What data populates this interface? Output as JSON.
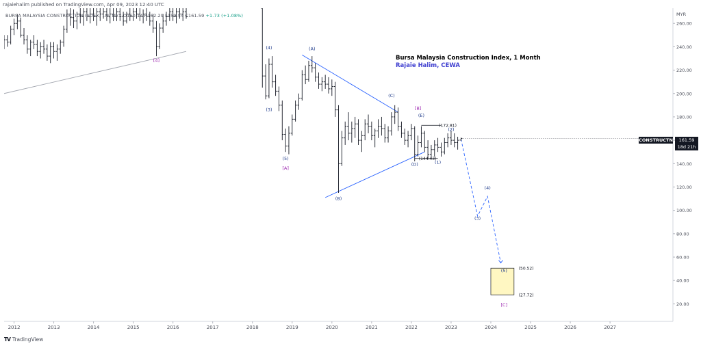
{
  "header": {
    "published": "rajaiehalim published on TradingView.com, Apr 09, 2023 12:40 UTC",
    "symbol_line": "BURSA MALAYSIA CONSTRUCTION INDEX, 1M, MYX  O160.14  H162.29  L159.54  C161.59",
    "change": "+1.73 (+1.08%)"
  },
  "annotation": {
    "title": "Bursa Malaysia Construction Index, 1 Month",
    "author": "Rajaie Halim, CEWA"
  },
  "price_tag": {
    "symbol": "CONSTRUCTN",
    "price": "161.59",
    "countdown": "18d 21h"
  },
  "footer": {
    "brand": "TradingView",
    "logo": "TV"
  },
  "colors": {
    "bar": "#131722",
    "trend": "#2962ff",
    "label_blue": "#1e3a8a",
    "label_purple": "#9c27b0",
    "target_box": "#fff7c2",
    "grid": "#e0e3eb"
  },
  "chart_data": {
    "type": "bar",
    "title": "Bursa Malaysia Construction Index, 1 Month",
    "x_axis": {
      "type": "date",
      "range": [
        "2011-10",
        "2028-08"
      ],
      "tick_labels": [
        "2012",
        "2013",
        "2014",
        "2015",
        "2016",
        "2017",
        "2018",
        "2019",
        "2020",
        "2021",
        "2022",
        "2023",
        "2024",
        "2025",
        "2026",
        "2027"
      ]
    },
    "y_axis": {
      "unit": "MYR",
      "range": [
        5,
        273
      ],
      "tick_labels": [
        "20.00",
        "40.00",
        "60.00",
        "80.00",
        "100.00",
        "120.00",
        "140.00",
        "160.00",
        "180.00",
        "200.00",
        "220.00",
        "240.00",
        "260.00"
      ]
    },
    "last_bar": {
      "date": "2023-04",
      "open": 160.14,
      "high": 162.29,
      "low": 159.54,
      "close": 161.59
    },
    "wave_labels": [
      {
        "text": "[4]",
        "date": "2015-08",
        "price": 227,
        "color": "purple"
      },
      {
        "text": "(4)",
        "date": "2018-06",
        "price": 238,
        "color": "blue"
      },
      {
        "text": "(3)",
        "date": "2018-06",
        "price": 185,
        "color": "blue"
      },
      {
        "text": "(5)",
        "date": "2018-11",
        "price": 143,
        "color": "blue"
      },
      {
        "text": "[A]",
        "date": "2018-11",
        "price": 135,
        "color": "purple"
      },
      {
        "text": "(A)",
        "date": "2019-07",
        "price": 237,
        "color": "blue"
      },
      {
        "text": "(B)",
        "date": "2020-03",
        "price": 109,
        "color": "blue"
      },
      {
        "text": "(C)",
        "date": "2021-07",
        "price": 197,
        "color": "blue"
      },
      {
        "text": "[B]",
        "date": "2022-03",
        "price": 186,
        "color": "purple"
      },
      {
        "text": "(E)",
        "date": "2022-04",
        "price": 180,
        "color": "blue"
      },
      {
        "text": "(D)",
        "date": "2022-02",
        "price": 138,
        "color": "blue"
      },
      {
        "text": "(2)",
        "date": "2023-01",
        "price": 168,
        "color": "blue"
      },
      {
        "text": "(1)",
        "date": "2022-09",
        "price": 140,
        "color": "blue"
      },
      {
        "text": "(4)",
        "date": "2023-12",
        "price": 118,
        "color": "blue"
      },
      {
        "text": "(3)",
        "date": "2023-09",
        "price": 92,
        "color": "blue"
      },
      {
        "text": "(5)",
        "date": "2024-05",
        "price": 47,
        "color": "blue"
      },
      {
        "text": "[C]",
        "date": "2024-05",
        "price": 18,
        "color": "purple"
      }
    ],
    "level_labels": [
      {
        "text": "(172.81)",
        "price": 172.81
      },
      {
        "text": "(144.43)",
        "price": 144.43
      },
      {
        "text": "(50.52)",
        "price": 50.52
      },
      {
        "text": "(27.72)",
        "price": 27.72
      }
    ],
    "projection_path": [
      {
        "date": "2023-04",
        "price": 161
      },
      {
        "date": "2023-09",
        "price": 95
      },
      {
        "date": "2023-12",
        "price": 112
      },
      {
        "date": "2024-04",
        "price": 55
      }
    ],
    "target_zone": {
      "from_date": "2024-01",
      "to_date": "2024-08",
      "top": 50.52,
      "bottom": 27.72
    },
    "trendlines": [
      {
        "from": {
          "date": "2011-10",
          "price": 200
        },
        "to": {
          "date": "2016-05",
          "price": 236
        },
        "color": "grey"
      },
      {
        "from": {
          "date": "2019-04",
          "price": 233
        },
        "to": {
          "date": "2021-09",
          "price": 184
        },
        "color": "blue"
      },
      {
        "from": {
          "date": "2019-11",
          "price": 111
        },
        "to": {
          "date": "2022-05",
          "price": 150
        },
        "color": "blue"
      }
    ],
    "series": [
      {
        "bars": [
          [
            "2011-10",
            245,
            250,
            238,
            246
          ],
          [
            "2011-11",
            246,
            250,
            240,
            244
          ],
          [
            "2011-12",
            244,
            258,
            242,
            255
          ],
          [
            "2012-01",
            255,
            264,
            250,
            260
          ],
          [
            "2012-02",
            260,
            268,
            255,
            262
          ],
          [
            "2012-03",
            262,
            265,
            248,
            250
          ],
          [
            "2012-04",
            250,
            256,
            242,
            246
          ],
          [
            "2012-05",
            246,
            250,
            234,
            238
          ],
          [
            "2012-06",
            238,
            246,
            232,
            244
          ],
          [
            "2012-07",
            244,
            250,
            238,
            242
          ],
          [
            "2012-08",
            242,
            246,
            232,
            236
          ],
          [
            "2012-09",
            236,
            244,
            230,
            240
          ],
          [
            "2012-10",
            240,
            246,
            234,
            238
          ],
          [
            "2012-11",
            238,
            242,
            228,
            232
          ],
          [
            "2012-12",
            232,
            244,
            226,
            240
          ],
          [
            "2013-01",
            240,
            244,
            230,
            236
          ],
          [
            "2013-02",
            236,
            242,
            228,
            238
          ],
          [
            "2013-03",
            238,
            246,
            234,
            244
          ],
          [
            "2013-04",
            244,
            258,
            240,
            255
          ],
          [
            "2013-05",
            255,
            272,
            252,
            268
          ],
          [
            "2013-06",
            268,
            273,
            258,
            265
          ],
          [
            "2013-07",
            265,
            272,
            256,
            262
          ],
          [
            "2013-08",
            262,
            270,
            255,
            268
          ],
          [
            "2013-09",
            268,
            273,
            260,
            266
          ],
          [
            "2013-10",
            266,
            273,
            258,
            270
          ],
          [
            "2013-11",
            270,
            273,
            262,
            266
          ],
          [
            "2013-12",
            266,
            273,
            260,
            268
          ],
          [
            "2014-01",
            268,
            273,
            262,
            266
          ],
          [
            "2014-02",
            266,
            273,
            258,
            270
          ],
          [
            "2014-03",
            270,
            273,
            262,
            268
          ],
          [
            "2014-04",
            268,
            273,
            264,
            270
          ],
          [
            "2014-05",
            270,
            273,
            262,
            266
          ],
          [
            "2014-06",
            266,
            273,
            260,
            268
          ],
          [
            "2014-07",
            268,
            273,
            262,
            266
          ],
          [
            "2014-08",
            266,
            273,
            262,
            270
          ],
          [
            "2014-09",
            270,
            273,
            262,
            266
          ],
          [
            "2014-10",
            266,
            270,
            258,
            262
          ],
          [
            "2014-11",
            262,
            270,
            260,
            268
          ],
          [
            "2014-12",
            268,
            273,
            262,
            266
          ],
          [
            "2015-01",
            266,
            273,
            262,
            270
          ],
          [
            "2015-02",
            270,
            273,
            264,
            268
          ],
          [
            "2015-03",
            268,
            273,
            262,
            266
          ],
          [
            "2015-04",
            266,
            272,
            260,
            268
          ],
          [
            "2015-05",
            268,
            273,
            262,
            266
          ],
          [
            "2015-06",
            266,
            270,
            258,
            262
          ],
          [
            "2015-07",
            262,
            268,
            252,
            256
          ],
          [
            "2015-08",
            256,
            262,
            232,
            240
          ],
          [
            "2015-09",
            240,
            260,
            238,
            256
          ],
          [
            "2015-10",
            256,
            268,
            252,
            262
          ],
          [
            "2015-11",
            262,
            270,
            258,
            266
          ],
          [
            "2015-12",
            266,
            273,
            262,
            270
          ],
          [
            "2016-01",
            270,
            273,
            262,
            266
          ],
          [
            "2016-02",
            266,
            273,
            260,
            270
          ],
          [
            "2016-03",
            270,
            273,
            264,
            268
          ],
          [
            "2016-04",
            268,
            273,
            262,
            270
          ],
          [
            "2016-05",
            270,
            273,
            264,
            266
          ],
          [
            "2018-04",
            273,
            273,
            205,
            215
          ],
          [
            "2018-05",
            215,
            225,
            195,
            198
          ],
          [
            "2018-06",
            198,
            230,
            196,
            225
          ],
          [
            "2018-07",
            225,
            232,
            205,
            210
          ],
          [
            "2018-08",
            210,
            216,
            198,
            202
          ],
          [
            "2018-09",
            202,
            206,
            185,
            190
          ],
          [
            "2018-10",
            190,
            194,
            160,
            165
          ],
          [
            "2018-11",
            165,
            170,
            150,
            155
          ],
          [
            "2018-12",
            155,
            172,
            148,
            166
          ],
          [
            "2019-01",
            166,
            182,
            164,
            178
          ],
          [
            "2019-02",
            178,
            194,
            176,
            190
          ],
          [
            "2019-03",
            190,
            200,
            186,
            196
          ],
          [
            "2019-04",
            196,
            220,
            194,
            216
          ],
          [
            "2019-05",
            216,
            224,
            208,
            212
          ],
          [
            "2019-06",
            212,
            228,
            210,
            224
          ],
          [
            "2019-07",
            224,
            232,
            218,
            222
          ],
          [
            "2019-08",
            222,
            226,
            210,
            214
          ],
          [
            "2019-09",
            214,
            218,
            204,
            208
          ],
          [
            "2019-10",
            208,
            214,
            202,
            210
          ],
          [
            "2019-11",
            210,
            216,
            204,
            208
          ],
          [
            "2019-12",
            208,
            214,
            200,
            204
          ],
          [
            "2020-01",
            204,
            212,
            198,
            206
          ],
          [
            "2020-02",
            206,
            210,
            180,
            186
          ],
          [
            "2020-03",
            186,
            190,
            115,
            140
          ],
          [
            "2020-04",
            140,
            168,
            138,
            162
          ],
          [
            "2020-05",
            162,
            176,
            156,
            172
          ],
          [
            "2020-06",
            172,
            184,
            160,
            166
          ],
          [
            "2020-07",
            166,
            176,
            158,
            170
          ],
          [
            "2020-08",
            170,
            180,
            162,
            174
          ],
          [
            "2020-09",
            174,
            178,
            156,
            160
          ],
          [
            "2020-10",
            160,
            168,
            150,
            164
          ],
          [
            "2020-11",
            164,
            178,
            160,
            174
          ],
          [
            "2020-12",
            174,
            182,
            166,
            172
          ],
          [
            "2021-01",
            172,
            176,
            160,
            164
          ],
          [
            "2021-02",
            164,
            170,
            154,
            168
          ],
          [
            "2021-03",
            168,
            178,
            162,
            172
          ],
          [
            "2021-04",
            172,
            180,
            164,
            170
          ],
          [
            "2021-05",
            170,
            174,
            158,
            162
          ],
          [
            "2021-06",
            162,
            172,
            158,
            168
          ],
          [
            "2021-07",
            168,
            184,
            164,
            180
          ],
          [
            "2021-08",
            180,
            190,
            174,
            184
          ],
          [
            "2021-09",
            184,
            188,
            168,
            172
          ],
          [
            "2021-10",
            172,
            176,
            162,
            166
          ],
          [
            "2021-11",
            166,
            170,
            156,
            160
          ],
          [
            "2021-12",
            160,
            168,
            154,
            164
          ],
          [
            "2022-01",
            164,
            174,
            160,
            170
          ],
          [
            "2022-02",
            170,
            172,
            142,
            148
          ],
          [
            "2022-03",
            148,
            164,
            146,
            158
          ],
          [
            "2022-04",
            158,
            172,
            154,
            166
          ],
          [
            "2022-05",
            166,
            168,
            150,
            154
          ],
          [
            "2022-06",
            154,
            160,
            144,
            148
          ],
          [
            "2022-07",
            148,
            156,
            144,
            152
          ],
          [
            "2022-08",
            152,
            160,
            146,
            156
          ],
          [
            "2022-09",
            156,
            162,
            150,
            154
          ],
          [
            "2022-10",
            154,
            158,
            146,
            150
          ],
          [
            "2022-11",
            150,
            162,
            148,
            158
          ],
          [
            "2022-12",
            158,
            166,
            154,
            162
          ],
          [
            "2023-01",
            162,
            168,
            156,
            160
          ],
          [
            "2023-02",
            160,
            166,
            154,
            158
          ],
          [
            "2023-03",
            158,
            163,
            152,
            160
          ],
          [
            "2023-04",
            160.14,
            162.29,
            159.54,
            161.59
          ]
        ]
      }
    ]
  }
}
